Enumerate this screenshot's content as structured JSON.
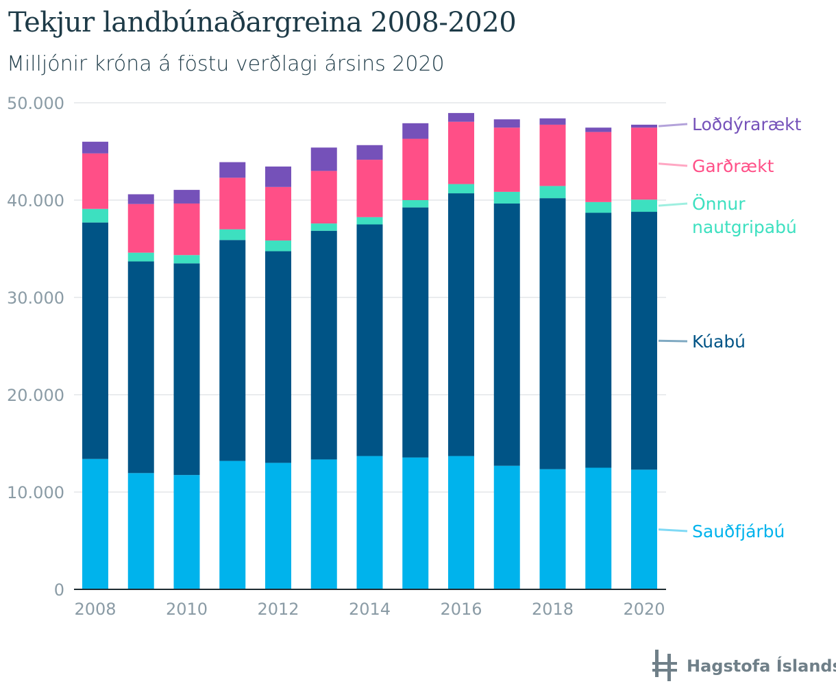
{
  "header": {
    "title": "Tekjur landbúnaðargreina 2008-2020",
    "subtitle": "Milljónir króna á föstu verðlagi ársins 2020"
  },
  "logo": {
    "text": "Hagstofa Íslands",
    "icon": "hagstofa-logo-icon"
  },
  "chart_data": {
    "type": "bar",
    "stacked": true,
    "title": "Tekjur landbúnaðargreina 2008-2020",
    "subtitle": "Milljónir króna á föstu verðlagi ársins 2020",
    "xlabel": "",
    "ylabel": "",
    "ylim": [
      0,
      50000
    ],
    "yticks": [
      0,
      10000,
      20000,
      30000,
      40000,
      50000
    ],
    "ytick_labels": [
      "0",
      "10.000",
      "20.000",
      "30.000",
      "40.000",
      "50.000"
    ],
    "xtick_labels": [
      "2008",
      "2010",
      "2012",
      "2014",
      "2016",
      "2018",
      "2020"
    ],
    "categories": [
      "2008",
      "2009",
      "2010",
      "2011",
      "2012",
      "2013",
      "2014",
      "2015",
      "2016",
      "2017",
      "2018",
      "2019",
      "2020"
    ],
    "grid": "horizontal",
    "legend_placement": "right, labels next to last bar",
    "series": [
      {
        "name": "Sauðfjárbú",
        "color": "#00b3ec",
        "values": [
          13400,
          11950,
          11750,
          13200,
          13000,
          13350,
          13700,
          13550,
          13700,
          12700,
          12350,
          12500,
          12300
        ]
      },
      {
        "name": "Kúabú",
        "color": "#005486",
        "values": [
          24300,
          21750,
          21750,
          22700,
          21750,
          23500,
          23800,
          25700,
          27000,
          26950,
          27850,
          26200,
          26500
        ]
      },
      {
        "name": "Önnur nautgripabú",
        "color": "#3de0c0",
        "values": [
          1400,
          900,
          850,
          1100,
          1100,
          750,
          750,
          750,
          950,
          1200,
          1250,
          1100,
          1250
        ]
      },
      {
        "name": "Garðrækt",
        "color": "#ff4f87",
        "values": [
          5700,
          5000,
          5300,
          5300,
          5500,
          5400,
          5900,
          6300,
          6400,
          6600,
          6300,
          7200,
          7400
        ]
      },
      {
        "name": "Loðdýrarækt",
        "color": "#7551b9",
        "values": [
          1200,
          1000,
          1400,
          1600,
          2100,
          2400,
          1500,
          1600,
          900,
          850,
          650,
          450,
          300
        ]
      }
    ],
    "legend": [
      {
        "series": "Loðdýrarækt",
        "label": "Loðdýrarækt",
        "color": "#7551b9",
        "line_color": "#b3a2da"
      },
      {
        "series": "Garðrækt",
        "label": "Garðrækt",
        "color": "#ff4f87",
        "line_color": "#ffa7c3"
      },
      {
        "series": "Önnur nautgripabú",
        "label_lines": [
          "Önnur",
          "nautgripabú"
        ],
        "color": "#3de0c0",
        "line_color": "#9eefe0"
      },
      {
        "series": "Kúabú",
        "label": "Kúabú",
        "color": "#005486",
        "line_color": "#7fa9c2"
      },
      {
        "series": "Sauðfjárbú",
        "label": "Sauðfjárbú",
        "color": "#00b3ec",
        "line_color": "#7fd9f5"
      }
    ]
  }
}
